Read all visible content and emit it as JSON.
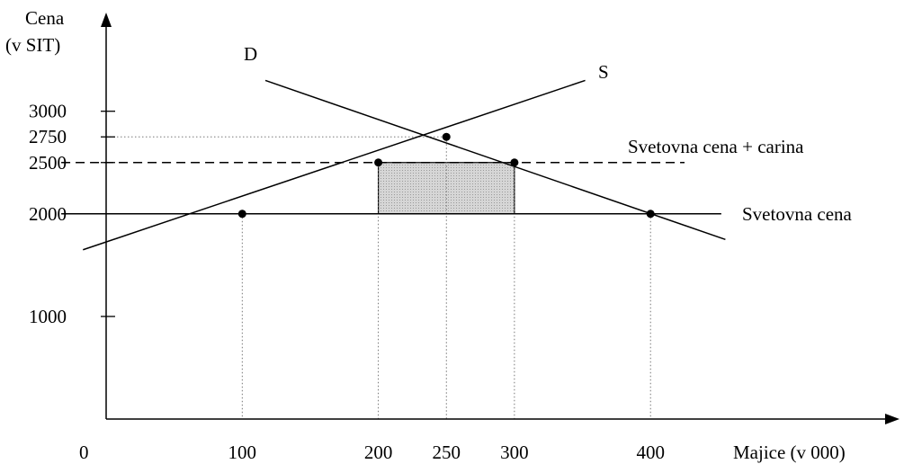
{
  "chart_data": {
    "type": "line",
    "ylabel_lines": [
      "Cena",
      "(v SIT)"
    ],
    "xlabel": "Majice (v 000)",
    "origin_label": "0",
    "xlim": [
      -33,
      472
    ],
    "ylim": [
      0,
      4000
    ],
    "y_tick_marks": [
      1000,
      2000,
      2500,
      2750,
      3000
    ],
    "y_tick_labels": [
      {
        "value": 3000,
        "text": "3000"
      },
      {
        "value": 2750,
        "text": "2750"
      },
      {
        "value": 2500,
        "text": "2500"
      },
      {
        "value": 2000,
        "text": "2000"
      },
      {
        "value": 1000,
        "text": "1000"
      }
    ],
    "x_tick_labels": [
      {
        "value": 100,
        "text": "100"
      },
      {
        "value": 200,
        "text": "200"
      },
      {
        "value": 250,
        "text": "250"
      },
      {
        "value": 300,
        "text": "300"
      },
      {
        "value": 400,
        "text": "400"
      }
    ],
    "series": [
      {
        "name": "D",
        "role": "demand",
        "points": [
          [
            117,
            3300
          ],
          [
            455,
            1750
          ]
        ]
      },
      {
        "name": "S",
        "role": "supply",
        "points": [
          [
            -17,
            1650
          ],
          [
            352,
            3300
          ]
        ]
      }
    ],
    "horizontal_lines": [
      {
        "name": "Svetovna cena",
        "y": 2000,
        "x_from": -33,
        "x_to": 452,
        "style": "solid"
      },
      {
        "name": "Svetovna cena + carina",
        "y": 2500,
        "x_from": -33,
        "x_to": 425,
        "style": "dashed"
      }
    ],
    "shaded_area": {
      "x": [
        200,
        300
      ],
      "y": [
        2000,
        2500
      ],
      "fill": "#d6d6d6"
    },
    "points": [
      {
        "x": 100,
        "y": 2000
      },
      {
        "x": 200,
        "y": 2500
      },
      {
        "x": 250,
        "y": 2750
      },
      {
        "x": 300,
        "y": 2500
      },
      {
        "x": 400,
        "y": 2000
      }
    ],
    "guide_lines": [
      {
        "x": 100,
        "y": 2000
      },
      {
        "x": 200,
        "y": 2500
      },
      {
        "x": 250,
        "y": 2750
      },
      {
        "x": 300,
        "y": 2500
      },
      {
        "x": 400,
        "y": 2000
      }
    ],
    "grid": false,
    "colors": {
      "line": "#000000",
      "guide": "#666666",
      "shade": "#d6d6d6"
    }
  }
}
